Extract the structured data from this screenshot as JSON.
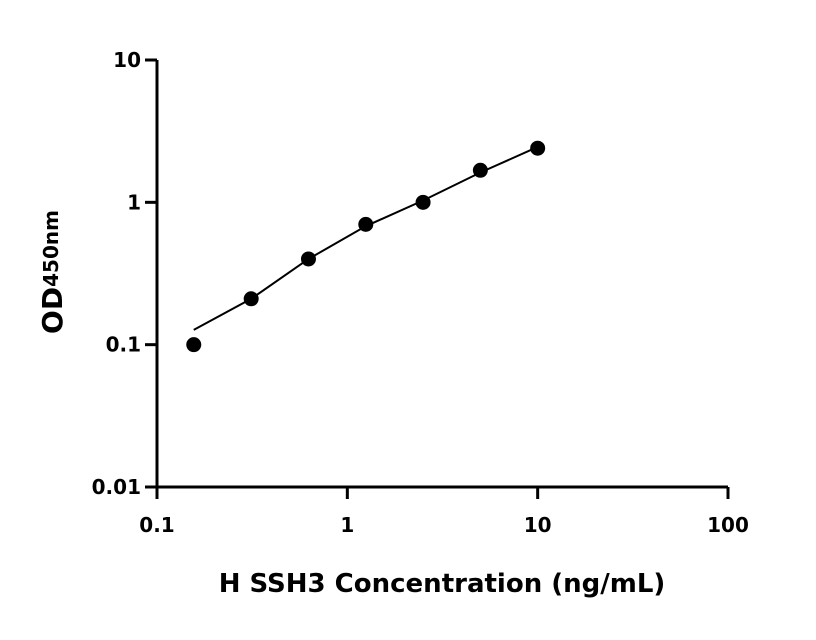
{
  "chart_data": {
    "type": "scatter",
    "x_label": "H SSH3 Concentration (ng/mL)",
    "y_label": "OD",
    "y_label_sub": "450nm",
    "x": [
      0.156,
      0.3125,
      0.625,
      1.25,
      2.5,
      5,
      10
    ],
    "series": [
      {
        "color": "#000000",
        "values": [
          0.1,
          0.21,
          0.4,
          0.7,
          1.0,
          1.68,
          2.4
        ],
        "style": "markers"
      },
      {
        "color": "#000000",
        "values": [
          0.127,
          0.21,
          0.4,
          0.68,
          1.03,
          1.62,
          2.45
        ],
        "style": "line"
      }
    ],
    "xlim": [
      0.1,
      100
    ],
    "ylim": [
      0.01,
      10
    ],
    "xticks": [
      0.1,
      1,
      10,
      100
    ],
    "yticks": [
      0.01,
      0.1,
      1,
      10
    ],
    "log_x": true,
    "log_y": true,
    "grid": false
  }
}
